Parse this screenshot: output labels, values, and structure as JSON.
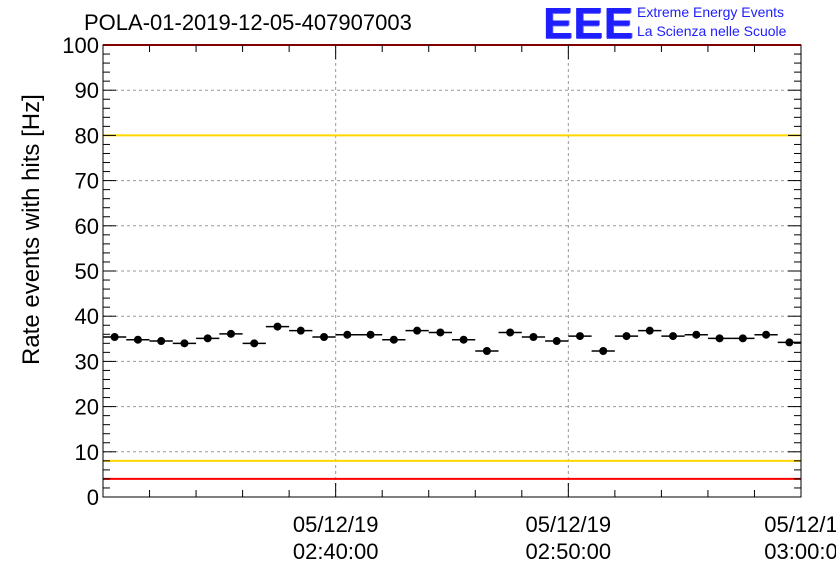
{
  "chart_data": {
    "type": "scatter",
    "title": "POLA-01-2019-12-05-407907003",
    "ylabel": "Rate events with hits [Hz]",
    "xlabel": "",
    "ylim": [
      0,
      100
    ],
    "yticks": [
      0,
      10,
      20,
      30,
      40,
      50,
      60,
      70,
      80,
      90,
      100
    ],
    "x_start": "2019-12-05 02:30:00",
    "x_end": "2019-12-05 03:00:00",
    "xticks": [
      {
        "date": "05/12/19",
        "time": "02:40:00",
        "t": "2019-12-05 02:40:00"
      },
      {
        "date": "05/12/19",
        "time": "02:50:00",
        "t": "2019-12-05 02:50:00"
      },
      {
        "date": "05/12/1",
        "time": "03:00:0",
        "t": "2019-12-05 03:00:00"
      }
    ],
    "grid": true,
    "reference_lines": [
      {
        "value": 100,
        "color": "#ff0000"
      },
      {
        "value": 80,
        "color": "#ffd700"
      },
      {
        "value": 8,
        "color": "#ffd700"
      },
      {
        "value": 4,
        "color": "#ff0000"
      }
    ],
    "series": [
      {
        "marker_color": "#000000",
        "points": [
          {
            "t": "2019-12-05 02:30:30",
            "y": 35.4
          },
          {
            "t": "2019-12-05 02:31:30",
            "y": 34.8
          },
          {
            "t": "2019-12-05 02:32:30",
            "y": 34.5
          },
          {
            "t": "2019-12-05 02:33:30",
            "y": 34.0
          },
          {
            "t": "2019-12-05 02:34:30",
            "y": 35.1
          },
          {
            "t": "2019-12-05 02:35:30",
            "y": 36.1
          },
          {
            "t": "2019-12-05 02:36:30",
            "y": 34.0
          },
          {
            "t": "2019-12-05 02:37:30",
            "y": 37.7
          },
          {
            "t": "2019-12-05 02:38:30",
            "y": 36.8
          },
          {
            "t": "2019-12-05 02:39:30",
            "y": 35.4
          },
          {
            "t": "2019-12-05 02:40:30",
            "y": 35.9
          },
          {
            "t": "2019-12-05 02:41:30",
            "y": 35.9
          },
          {
            "t": "2019-12-05 02:42:30",
            "y": 34.8
          },
          {
            "t": "2019-12-05 02:43:30",
            "y": 36.8
          },
          {
            "t": "2019-12-05 02:44:30",
            "y": 36.4
          },
          {
            "t": "2019-12-05 02:45:30",
            "y": 34.8
          },
          {
            "t": "2019-12-05 02:46:30",
            "y": 32.3
          },
          {
            "t": "2019-12-05 02:47:30",
            "y": 36.4
          },
          {
            "t": "2019-12-05 02:48:30",
            "y": 35.4
          },
          {
            "t": "2019-12-05 02:49:30",
            "y": 34.5
          },
          {
            "t": "2019-12-05 02:50:30",
            "y": 35.6
          },
          {
            "t": "2019-12-05 02:51:30",
            "y": 32.3
          },
          {
            "t": "2019-12-05 02:52:30",
            "y": 35.6
          },
          {
            "t": "2019-12-05 02:53:30",
            "y": 36.8
          },
          {
            "t": "2019-12-05 02:54:30",
            "y": 35.6
          },
          {
            "t": "2019-12-05 02:55:30",
            "y": 35.9
          },
          {
            "t": "2019-12-05 02:56:30",
            "y": 35.1
          },
          {
            "t": "2019-12-05 02:57:30",
            "y": 35.1
          },
          {
            "t": "2019-12-05 02:58:30",
            "y": 35.9
          },
          {
            "t": "2019-12-05 02:59:30",
            "y": 34.2
          }
        ]
      }
    ]
  },
  "logo": {
    "mark": "EEE",
    "line1": "Extreme Energy Events",
    "line2": "La Scienza nelle Scuole",
    "color": "#1e1eff"
  }
}
